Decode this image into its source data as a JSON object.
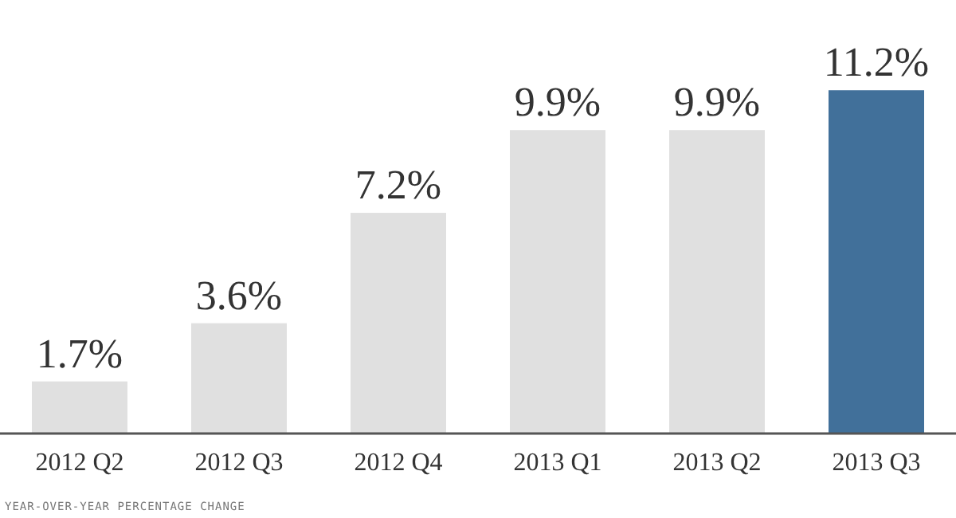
{
  "chart_data": {
    "type": "bar",
    "categories": [
      "2012 Q2",
      "2012 Q3",
      "2012 Q4",
      "2013 Q1",
      "2013 Q2",
      "2013 Q3"
    ],
    "values": [
      1.7,
      3.6,
      7.2,
      9.9,
      9.9,
      11.2
    ],
    "value_labels": [
      "1.7%",
      "3.6%",
      "7.2%",
      "9.9%",
      "9.9%",
      "11.2%"
    ],
    "colors": [
      "#e0e0e0",
      "#e0e0e0",
      "#e0e0e0",
      "#e0e0e0",
      "#e0e0e0",
      "#41709a"
    ],
    "annotations": [
      "YEAR-OVER-YEAR PERCENTAGE CHANGE"
    ]
  }
}
